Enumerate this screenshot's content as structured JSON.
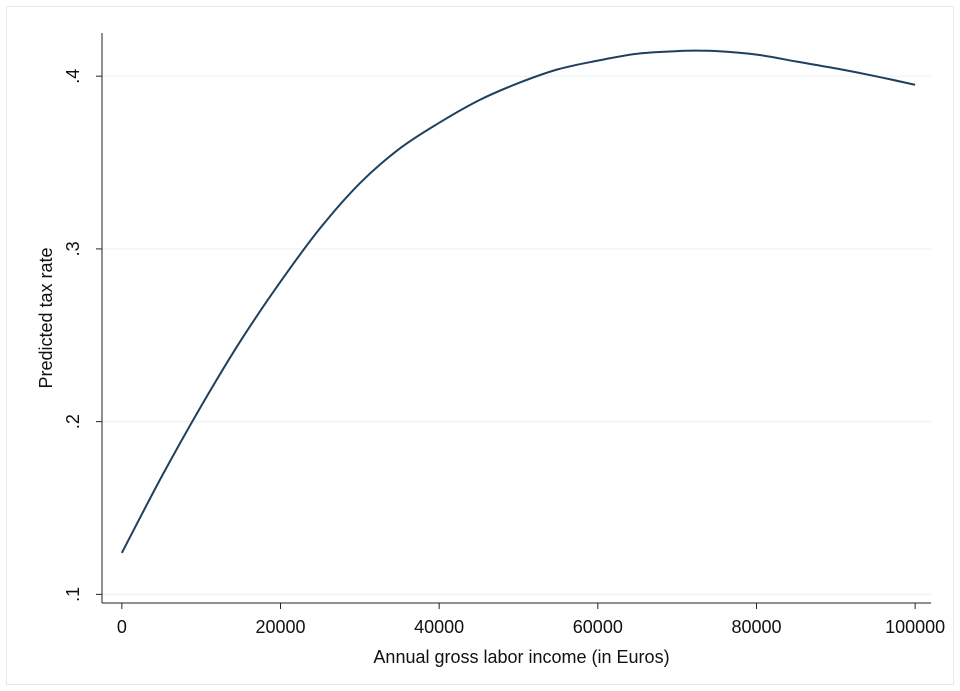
{
  "chart_data": {
    "type": "line",
    "title": "",
    "xlabel": "Annual gross labor income (in Euros)",
    "ylabel": "Predicted tax rate",
    "xlim": [
      -2500,
      102000
    ],
    "ylim": [
      0.095,
      0.425
    ],
    "x_ticks": [
      0,
      20000,
      40000,
      60000,
      80000,
      100000
    ],
    "x_tick_labels": [
      "0",
      "20000",
      "40000",
      "60000",
      "80000",
      "100000"
    ],
    "y_ticks": [
      0.1,
      0.2,
      0.3,
      0.4
    ],
    "y_tick_labels": [
      ".1",
      ".2",
      ".3",
      ".4"
    ],
    "grid": "horizontal",
    "line_color": "#1f3f5f",
    "grid_color": "#eaf0f3",
    "series": [
      {
        "x": [
          0,
          5000,
          10000,
          15000,
          20000,
          25000,
          30000,
          35000,
          40000,
          45000,
          50000,
          55000,
          60000,
          65000,
          70000,
          72000,
          75000,
          80000,
          85000,
          90000,
          95000,
          100000
        ],
        "values": [
          0.124,
          0.168,
          0.209,
          0.247,
          0.281,
          0.312,
          0.338,
          0.358,
          0.373,
          0.386,
          0.396,
          0.404,
          0.409,
          0.413,
          0.4145,
          0.4148,
          0.4145,
          0.4125,
          0.4085,
          0.4045,
          0.4,
          0.395
        ]
      }
    ]
  }
}
